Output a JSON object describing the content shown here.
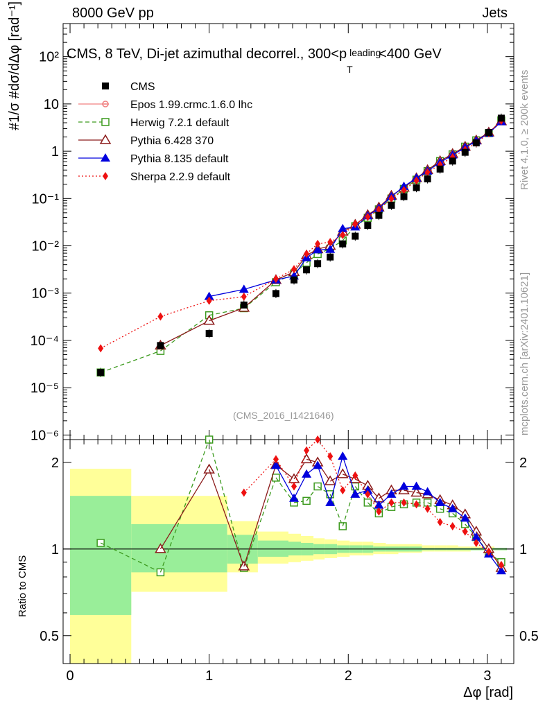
{
  "header": {
    "left": "8000 GeV pp",
    "right": "Jets"
  },
  "side_text": {
    "top": "Rivet 4.1.0, ≥ 200k events",
    "bottom": "mcplots.cern.ch [arXiv:2401.10621]"
  },
  "watermark": "(CMS_2016_I1421646)",
  "colors": {
    "cms": "#000000",
    "epos": "#f08080",
    "herwig": "#3c9a1e",
    "pythia6": "#8b1a1a",
    "pythia8": "#0000dd",
    "sherpa": "#ee1111",
    "band_yellow": "#ffff99",
    "band_green": "#99ee99"
  },
  "chart_data": [
    {
      "type": "scatter",
      "title": "CMS, 8 TeV, Di-jet azimuthal decorrel., 300<p_T^leading<400 GeV",
      "title_parts": {
        "prefix": "CMS, 8 TeV, Di-jet azimuthal decorrel., 300<p",
        "sub": "T",
        "sup": "leading",
        "suffix": "<400 GeV"
      },
      "ylabel": "#1/σ #dσ/dΔφ [rad⁻¹]",
      "xlabel": "Δφ [rad]",
      "yscale": "log",
      "ylim": [
        8e-07,
        500
      ],
      "xlim": [
        -0.05,
        3.19
      ],
      "ytick_labels": [
        "10⁻⁶",
        "10⁻⁵",
        "10⁻⁴",
        "10⁻³",
        "10⁻²",
        "10⁻¹",
        "1",
        "10",
        "10²"
      ],
      "x": [
        0.22,
        0.65,
        1.0,
        1.25,
        1.48,
        1.61,
        1.7,
        1.78,
        1.87,
        1.96,
        2.05,
        2.14,
        2.22,
        2.31,
        2.4,
        2.49,
        2.57,
        2.66,
        2.75,
        2.84,
        2.92,
        3.01,
        3.1
      ],
      "series": [
        {
          "name": "CMS",
          "style": "cms",
          "values": [
            2.1e-05,
            7.8e-05,
            0.00014,
            0.00056,
            0.00098,
            0.0019,
            0.0031,
            0.0042,
            0.0058,
            0.011,
            0.016,
            0.027,
            0.044,
            0.072,
            0.11,
            0.17,
            0.26,
            0.42,
            0.62,
            0.95,
            1.5,
            2.5,
            5.0
          ]
        },
        {
          "name": "Epos 1.99.crmc.1.6.0 lhc",
          "style": "epos",
          "values": []
        },
        {
          "name": "Herwig 7.2.1 default",
          "style": "herwig",
          "values": [
            2.1e-05,
            6e-05,
            0.00034,
            0.00048,
            0.0017,
            0.0026,
            0.0044,
            0.0067,
            0.0087,
            0.013,
            0.026,
            0.039,
            0.059,
            0.1,
            0.16,
            0.25,
            0.38,
            0.62,
            0.86,
            1.25,
            1.7,
            2.4,
            4.5
          ]
        },
        {
          "name": "Pythia 6.428 370",
          "style": "pythia6",
          "values": [
            null,
            7.8e-05,
            0.00026,
            0.00049,
            0.0019,
            0.0028,
            0.0063,
            0.0085,
            0.01,
            0.02,
            0.028,
            0.045,
            0.065,
            0.115,
            0.17,
            0.27,
            0.4,
            0.62,
            0.88,
            1.25,
            1.7,
            2.5,
            4.3
          ]
        },
        {
          "name": "Pythia 8.135 default",
          "style": "pythia8",
          "values": [
            null,
            null,
            0.00085,
            0.0012,
            0.0019,
            0.0023,
            0.0056,
            0.0082,
            0.0084,
            0.023,
            0.025,
            0.043,
            0.062,
            0.11,
            0.18,
            0.27,
            0.38,
            0.58,
            0.83,
            1.2,
            1.65,
            2.4,
            4.2
          ]
        },
        {
          "name": "Sherpa 2.2.9 default",
          "style": "sherpa",
          "values": [
            6.8e-05,
            0.00032,
            0.00069,
            0.00084,
            0.002,
            0.0032,
            0.0068,
            0.011,
            0.012,
            0.017,
            0.029,
            0.041,
            0.059,
            0.1,
            0.15,
            0.24,
            0.36,
            0.52,
            0.75,
            1.08,
            1.5,
            2.4,
            4.4
          ]
        }
      ]
    },
    {
      "type": "scatter",
      "ylabel": "Ratio to CMS",
      "yscale": "log",
      "ylim": [
        0.4,
        2.4
      ],
      "ytick_labels": [
        "0.5",
        "1",
        "2"
      ],
      "reference_line": 1,
      "uncertainty_bands": {
        "edges": [
          0.0,
          0.44,
          1.13,
          1.35,
          1.57,
          1.66,
          1.75,
          1.83,
          1.92,
          2.01,
          2.1,
          2.18,
          2.27,
          2.36,
          2.44,
          2.53,
          2.62,
          2.71,
          2.79,
          2.88,
          2.97,
          3.05,
          3.14
        ],
        "green_lo": [
          0.59,
          0.83,
          0.89,
          0.94,
          0.95,
          0.95,
          0.96,
          0.96,
          0.97,
          0.97,
          0.97,
          0.98,
          0.98,
          0.98,
          0.98,
          0.99,
          0.99,
          0.99,
          0.99,
          0.99,
          0.99,
          0.99
        ],
        "green_hi": [
          1.53,
          1.22,
          1.12,
          1.07,
          1.06,
          1.05,
          1.04,
          1.04,
          1.03,
          1.03,
          1.03,
          1.02,
          1.02,
          1.02,
          1.02,
          1.01,
          1.01,
          1.01,
          1.01,
          1.01,
          1.01,
          1.01
        ],
        "yellow_lo": [
          0.4,
          0.71,
          0.83,
          0.89,
          0.9,
          0.91,
          0.92,
          0.93,
          0.94,
          0.95,
          0.95,
          0.96,
          0.96,
          0.97,
          0.97,
          0.98,
          0.98,
          0.98,
          0.98,
          0.99,
          0.99,
          0.99
        ],
        "yellow_hi": [
          1.9,
          1.53,
          1.25,
          1.15,
          1.13,
          1.11,
          1.09,
          1.08,
          1.07,
          1.06,
          1.06,
          1.05,
          1.04,
          1.04,
          1.04,
          1.03,
          1.03,
          1.03,
          1.02,
          1.02,
          1.02,
          1.01
        ]
      },
      "series": [
        {
          "name": "Herwig 7.2.1 default",
          "style": "herwig",
          "values": [
            1.05,
            0.83,
            2.4,
            0.86,
            1.77,
            1.45,
            1.47,
            1.65,
            1.55,
            1.2,
            1.65,
            1.45,
            1.33,
            1.4,
            1.43,
            1.45,
            1.45,
            1.38,
            1.33,
            1.22,
            1.1,
            0.97,
            0.9
          ]
        },
        {
          "name": "Pythia 6.428 370",
          "style": "pythia6",
          "values": [
            null,
            1.0,
            1.89,
            0.87,
            1.96,
            1.75,
            2.05,
            2.0,
            1.72,
            1.82,
            1.75,
            1.66,
            1.5,
            1.6,
            1.6,
            1.57,
            1.55,
            1.48,
            1.42,
            1.32,
            1.15,
            1.0,
            0.86
          ]
        },
        {
          "name": "Pythia 8.135 default",
          "style": "pythia8",
          "values": [
            null,
            null,
            null,
            null,
            1.95,
            1.5,
            1.82,
            1.95,
            1.45,
            2.1,
            1.55,
            1.6,
            1.42,
            1.55,
            1.65,
            1.65,
            1.58,
            1.45,
            1.38,
            1.28,
            1.1,
            0.96,
            0.84
          ]
        },
        {
          "name": "Sherpa 2.2.9 default",
          "style": "sherpa",
          "values": [
            null,
            null,
            null,
            1.57,
            2.05,
            1.65,
            2.2,
            2.4,
            2.1,
            1.6,
            1.8,
            1.55,
            1.35,
            1.45,
            1.45,
            1.43,
            1.38,
            1.24,
            1.2,
            1.15,
            1.05,
            0.98,
            0.88
          ]
        }
      ]
    }
  ]
}
